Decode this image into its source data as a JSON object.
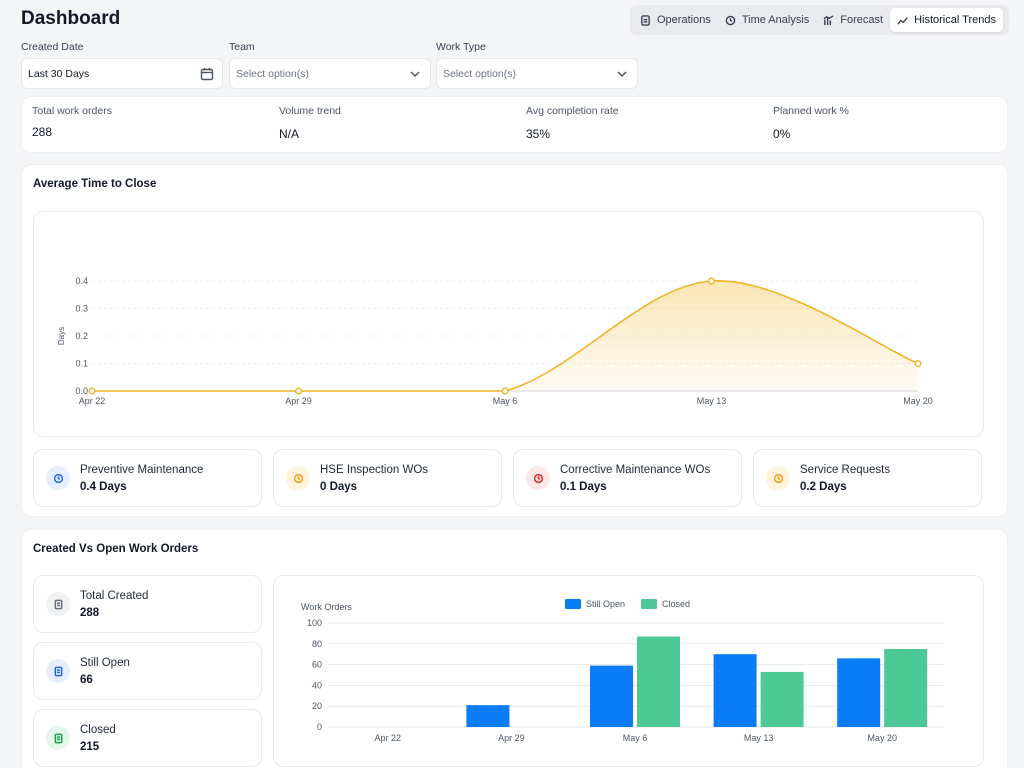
{
  "header": {
    "title": "Dashboard"
  },
  "tabs": [
    {
      "label": "Operations",
      "icon": "document-icon"
    },
    {
      "label": "Time Analysis",
      "icon": "clock-icon"
    },
    {
      "label": "Forecast",
      "icon": "forecast-icon"
    },
    {
      "label": "Historical Trends",
      "icon": "trend-icon",
      "active": true
    }
  ],
  "filters": {
    "created_date": {
      "label": "Created Date",
      "value": "Last 30 Days"
    },
    "team": {
      "label": "Team",
      "placeholder": "Select option(s)"
    },
    "work_type": {
      "label": "Work Type",
      "placeholder": "Select option(s)"
    }
  },
  "stats": [
    {
      "label": "Total work orders",
      "value": "288"
    },
    {
      "label": "Volume trend",
      "value": "N/A"
    },
    {
      "label": "Avg completion rate",
      "value": "35%"
    },
    {
      "label": "Planned work %",
      "value": "0%"
    }
  ],
  "avg_time": {
    "title": "Average Time to Close",
    "categories": [
      {
        "label": "Preventive Maintenance",
        "value": "0.4 Days",
        "color": "#2563eb",
        "bg": "#e6efff"
      },
      {
        "label": "HSE Inspection WOs",
        "value": "0 Days",
        "color": "#f59e0b",
        "bg": "#fff3de"
      },
      {
        "label": "Corrective Maintenance WOs",
        "value": "0.1 Days",
        "color": "#dc2626",
        "bg": "#fde8e8"
      },
      {
        "label": "Service Requests",
        "value": "0.2 Days",
        "color": "#f59e0b",
        "bg": "#fff3de"
      }
    ]
  },
  "created_open": {
    "title": "Created Vs Open Work Orders",
    "summary": [
      {
        "label": "Total Created",
        "value": "288",
        "color": "#6b7280",
        "bg": "#f1f2f4"
      },
      {
        "label": "Still Open",
        "value": "66",
        "color": "#2563eb",
        "bg": "#e6efff"
      },
      {
        "label": "Closed",
        "value": "215",
        "color": "#16a34a",
        "bg": "#e3f6ea"
      }
    ]
  },
  "chart_data": [
    {
      "type": "area",
      "title": "Average Time to Close",
      "xlabel": "",
      "ylabel": "Days",
      "categories": [
        "Apr 22",
        "Apr 29",
        "May 6",
        "May 13",
        "May 20"
      ],
      "values": [
        0,
        0,
        0,
        0.4,
        0.1
      ],
      "ylim": [
        0,
        0.4
      ],
      "yticks": [
        "0.0",
        "0.1",
        "0.2",
        "0.3",
        "0.4"
      ],
      "color": "#f0b429",
      "grid": true
    },
    {
      "type": "bar",
      "title": "",
      "ylabel": "Work Orders",
      "categories": [
        "Apr 22",
        "Apr 29",
        "May 6",
        "May 13",
        "May 20"
      ],
      "series": [
        {
          "name": "Still Open",
          "values": [
            0,
            21,
            59,
            70,
            66
          ],
          "color": "#0a7cf5"
        },
        {
          "name": "Closed",
          "values": [
            0,
            0,
            87,
            53,
            75
          ],
          "color": "#4cc994"
        }
      ],
      "ylim": [
        0,
        100
      ],
      "yticks": [
        "0",
        "20",
        "40",
        "60",
        "80",
        "100"
      ],
      "legend": "top-center",
      "grid": true
    }
  ]
}
